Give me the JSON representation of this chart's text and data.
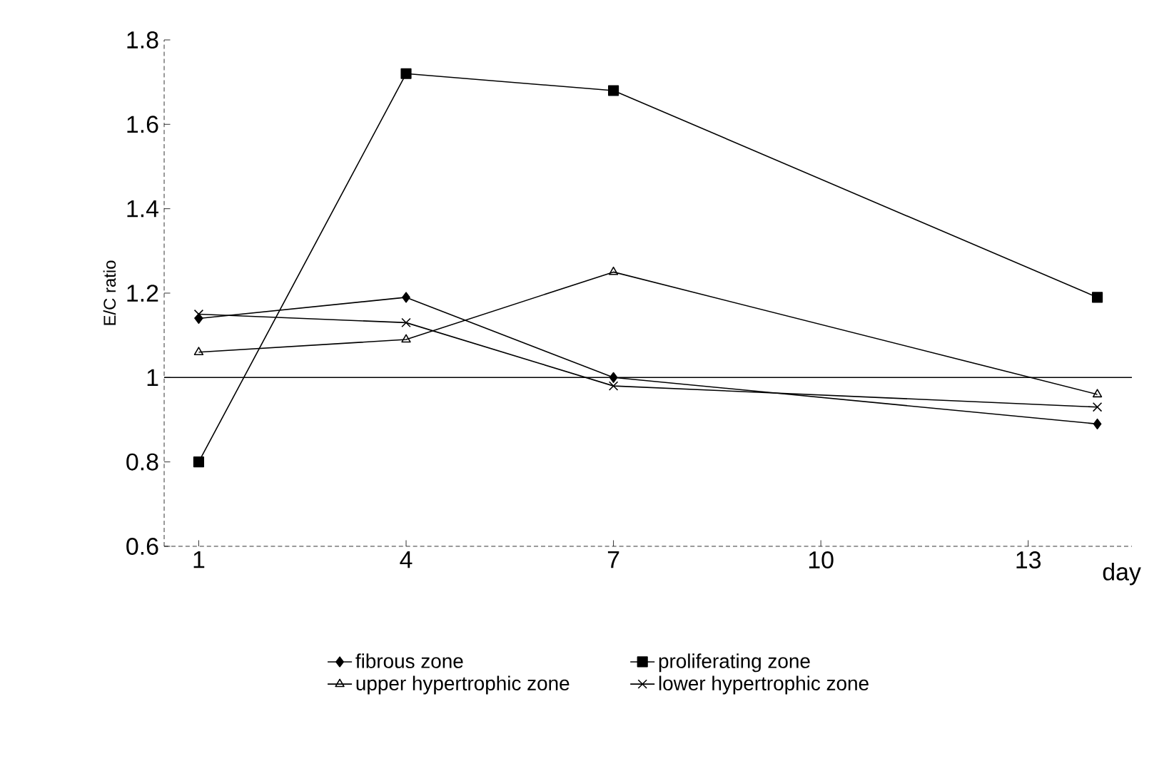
{
  "chart_data": {
    "type": "line",
    "xlabel": "day",
    "ylabel": "E/C ratio",
    "xlim": [
      0.5,
      14.5
    ],
    "xticks": [
      1,
      4,
      7,
      10,
      13
    ],
    "ylim": [
      0.6,
      1.8
    ],
    "yticks": [
      0.6,
      0.8,
      1,
      1.2,
      1.4,
      1.6,
      1.8
    ],
    "legend": "bottom",
    "grid": false,
    "line_style": "solid",
    "ref_lines": [
      {
        "axis": "y",
        "value": 1,
        "color": "#000000",
        "line_style": "solid"
      }
    ],
    "series": [
      {
        "name": "fibrous zone",
        "color": "#000000",
        "marker": "diamond",
        "x": [
          1,
          4,
          7,
          14
        ],
        "values": [
          1.14,
          1.19,
          1.0,
          0.89
        ]
      },
      {
        "name": "proliferating zone",
        "color": "#000000",
        "marker": "square",
        "x": [
          1,
          4,
          7,
          14
        ],
        "values": [
          0.8,
          1.72,
          1.68,
          1.19
        ]
      },
      {
        "name": "upper hypertrophic zone",
        "color": "#000000",
        "marker": "triangle",
        "x": [
          1,
          4,
          7,
          14
        ],
        "values": [
          1.06,
          1.09,
          1.25,
          0.96
        ]
      },
      {
        "name": "lower hypertrophic zone",
        "color": "#000000",
        "marker": "cross",
        "x": [
          1,
          4,
          7,
          14
        ],
        "values": [
          1.15,
          1.13,
          0.98,
          0.93
        ]
      }
    ]
  }
}
